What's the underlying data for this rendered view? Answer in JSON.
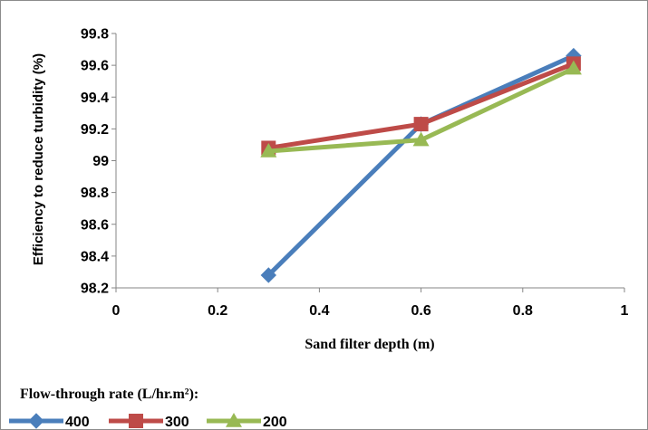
{
  "chart_data": {
    "type": "line",
    "xlabel": "Sand filter depth (m)",
    "ylabel": "Efficiency to reduce turbidity (%)",
    "xlim": [
      0,
      1
    ],
    "ylim": [
      98.2,
      99.8
    ],
    "x_ticks": [
      "0",
      "0.2",
      "0.4",
      "0.6",
      "0.8",
      "1"
    ],
    "y_ticks": [
      "98.2",
      "98.4",
      "98.6",
      "98.8",
      "99",
      "99.2",
      "99.4",
      "99.6",
      "99.8"
    ],
    "grid": false,
    "legend_title": "Flow-through rate (L/hr.m²):",
    "legend_placement": "bottom-left",
    "series": [
      {
        "name": "400",
        "color": "#4a7ebb",
        "marker": "diamond",
        "x": [
          0.3,
          0.6,
          0.9
        ],
        "y": [
          98.28,
          99.23,
          99.66
        ]
      },
      {
        "name": "300",
        "color": "#be4b48",
        "marker": "square",
        "x": [
          0.3,
          0.6,
          0.9
        ],
        "y": [
          99.08,
          99.23,
          99.61
        ]
      },
      {
        "name": "200",
        "color": "#98b954",
        "marker": "triangle",
        "x": [
          0.3,
          0.6,
          0.9
        ],
        "y": [
          99.06,
          99.13,
          99.58
        ]
      }
    ]
  }
}
